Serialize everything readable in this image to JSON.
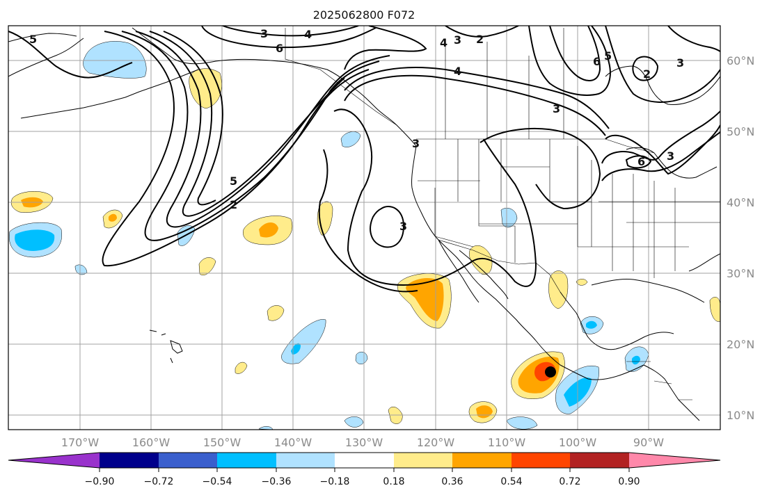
{
  "title": "2025062800 F072",
  "map": {
    "longitude_labels": [
      "170°W",
      "160°W",
      "150°W",
      "140°W",
      "130°W",
      "120°W",
      "110°W",
      "100°W",
      "90°W"
    ],
    "latitude_labels": [
      "60°N",
      "50°N",
      "40°N",
      "30°N",
      "20°N",
      "10°N"
    ]
  },
  "contours": {
    "color": "#000000",
    "labels": [
      "5",
      "3",
      "4",
      "6",
      "3",
      "2",
      "4",
      "6",
      "5",
      "2",
      "3",
      "4",
      "3",
      "3",
      "5",
      "2",
      "3",
      "6",
      "3"
    ]
  },
  "colorbar": {
    "tick_labels": [
      "−0.90",
      "−0.72",
      "−0.54",
      "−0.36",
      "−0.18",
      "0.18",
      "0.36",
      "0.54",
      "0.72",
      "0.90"
    ],
    "colors": [
      "#9932cc",
      "#00008b",
      "#3a5fcd",
      "#00bfff",
      "#b0e2ff",
      "#ffffff",
      "#ffec8b",
      "#ffa500",
      "#ff4500",
      "#b22222",
      "#ff88aa"
    ]
  },
  "storm_marker": {
    "color": "#000000"
  }
}
